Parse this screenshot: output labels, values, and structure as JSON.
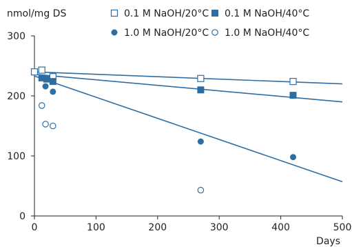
{
  "chart_data": {
    "type": "scatter",
    "title": "",
    "xlabel": "Days",
    "ylabel": "nmol/mg DS",
    "xlim": [
      0,
      500
    ],
    "ylim": [
      0,
      300
    ],
    "x_ticks": [
      0,
      100,
      200,
      300,
      400,
      500
    ],
    "y_ticks": [
      0,
      100,
      200,
      300
    ],
    "grid": false,
    "legend_position": "top",
    "color": "#2e6da4",
    "series": [
      {
        "name": "0.1 M NaOH/20°C",
        "marker": "open-square",
        "points": [
          [
            0,
            240
          ],
          [
            12,
            243
          ],
          [
            30,
            232
          ],
          [
            270,
            229
          ],
          [
            420,
            224
          ]
        ],
        "trend": [
          [
            0,
            240
          ],
          [
            500,
            220
          ]
        ]
      },
      {
        "name": "0.1 M NaOH/40°C",
        "marker": "filled-square",
        "points": [
          [
            12,
            230
          ],
          [
            20,
            228
          ],
          [
            30,
            224
          ],
          [
            270,
            210
          ],
          [
            420,
            201
          ]
        ],
        "trend": [
          [
            0,
            236
          ],
          [
            500,
            190
          ]
        ]
      },
      {
        "name": "1.0 M NaOH/20°C",
        "marker": "filled-circle",
        "points": [
          [
            18,
            216
          ],
          [
            30,
            207
          ],
          [
            270,
            124
          ],
          [
            420,
            98
          ]
        ],
        "trend": [
          [
            0,
            233
          ],
          [
            500,
            57
          ]
        ]
      },
      {
        "name": "1.0 M NaOH/40°C",
        "marker": "open-circle",
        "points": [
          [
            12,
            184
          ],
          [
            18,
            153
          ],
          [
            30,
            150
          ],
          [
            270,
            43
          ]
        ]
      }
    ]
  }
}
